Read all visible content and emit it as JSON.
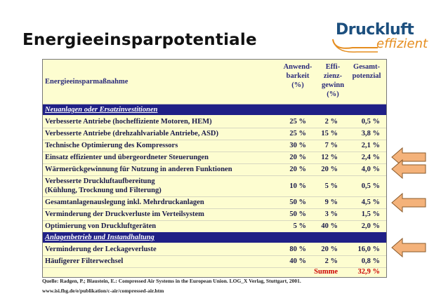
{
  "title": "Energieeinsparpotentiale",
  "logo": {
    "main": "Druckluft",
    "sub": "effizient"
  },
  "table": {
    "head": {
      "measure": "Energieeinsparmaßnahme",
      "col1": "Anwend-\nbarkeit\n(%)",
      "col2": "Effi-\nzienz-\ngewinn\n(%)",
      "col3": "Gesamt-\npotenzial"
    },
    "section1": "Neuanlagen oder Ersatzinvestitionen",
    "section2": "Anlagenbetrieb und Instandhaltung",
    "rows": [
      {
        "m": "Verbesserte Antriebe (hocheffiziente Motoren, HEM)",
        "a": "25 %",
        "e": "2 %",
        "g": "0,5 %"
      },
      {
        "m": "Verbesserte Antriebe (drehzahlvariable Antriebe, ASD)",
        "a": "25 %",
        "e": "15 %",
        "g": "3,8 %"
      },
      {
        "m": "Technische Optimierung des Kompressors",
        "a": "30 %",
        "e": "7 %",
        "g": "2,1 %"
      },
      {
        "m": "Einsatz effizienter und übergeordneter Steuerungen",
        "a": "20 %",
        "e": "12 %",
        "g": "2,4 %"
      },
      {
        "m": "Wärmerückgewinnung für Nutzung in anderen Funktionen",
        "a": "20 %",
        "e": "20 %",
        "g": "4,0 %"
      },
      {
        "m": "Verbesserte Druckluftaufbereitung\n(Kühlung, Trocknung und Filterung)",
        "a": "10 %",
        "e": "5 %",
        "g": "0,5 %"
      },
      {
        "m": "Gesamtanlagenauslegung inkl. Mehrdruckanlagen",
        "a": "50 %",
        "e": "9 %",
        "g": "4,5 %"
      },
      {
        "m": "Verminderung der Druckverluste im Verteilsystem",
        "a": "50 %",
        "e": "3 %",
        "g": "1,5 %"
      },
      {
        "m": "Optimierung von Druckluftgeräten",
        "a": "5 %",
        "e": "40 %",
        "g": "2,0 %"
      },
      {
        "m": "Verminderung der Leckageverluste",
        "a": "80 %",
        "e": "20 %",
        "g": "16,0 %"
      },
      {
        "m": "Häufigerer Filterwechsel",
        "a": "40 %",
        "e": "2 %",
        "g": "0,8 %"
      }
    ],
    "sum_label": "Summe",
    "sum_value": "32,9 %"
  },
  "source": "Quelle: Radgen, P.; Blaustein, E.: Compressed Air Systems in the European Union. LOG_X Verlag, Stuttgart, 2001.",
  "url": "www.isi.fhg.de/e/publikation/c-air/compressed-air.htm",
  "colors": {
    "accent_arrow": "#f4b27a",
    "section_bg": "#202086",
    "table_bg": "#fdfdd0",
    "sum_red": "#cc0000"
  }
}
